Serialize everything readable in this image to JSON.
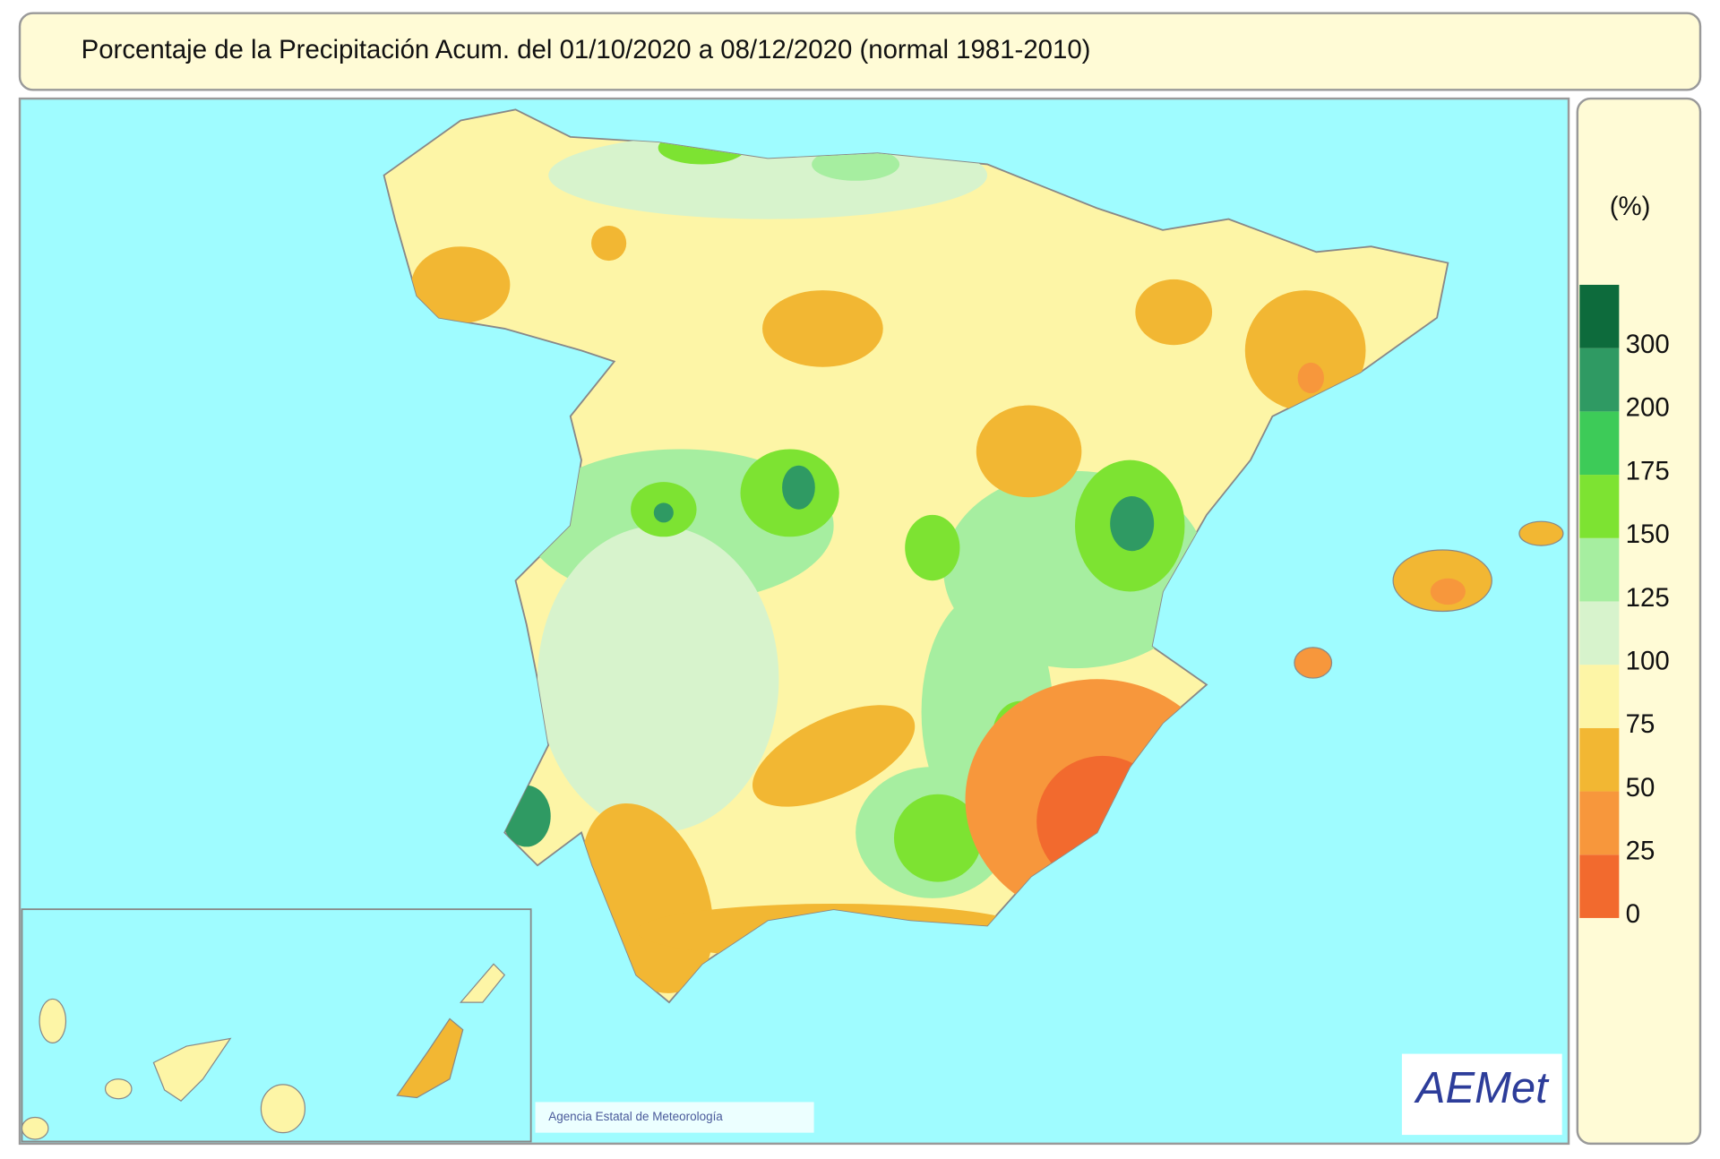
{
  "header": {
    "title": "Porcentaje de la Precipitación Acum. del 01/10/2020 a  08/12/2020  (normal 1981-2010)"
  },
  "legend": {
    "unit": "(%)",
    "ticks": [
      0,
      25,
      50,
      75,
      100,
      125,
      150,
      175,
      200,
      300
    ],
    "colors": [
      "#f26a2e",
      "#f7973c",
      "#f2b733",
      "#fdf5a6",
      "#d7f3cc",
      "#a6eea0",
      "#7de332",
      "#3dcb58",
      "#2f9a63",
      "#0d6b3c"
    ]
  },
  "credit": "Agencia Estatal de Meteorología",
  "logo": "AEMet"
}
